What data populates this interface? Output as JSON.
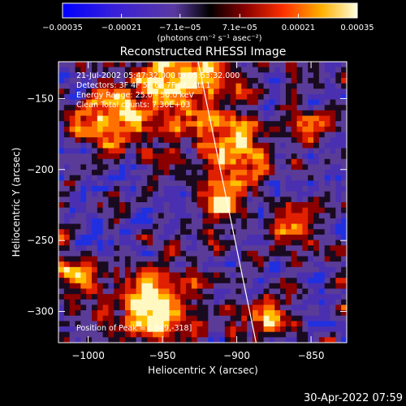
{
  "chart_data": {
    "type": "heatmap",
    "title": "Reconstructed RHESSI Image",
    "xlabel": "Heliocentric X (arcsec)",
    "ylabel": "Heliocentric Y (arcsec)",
    "xlim": [
      -1020,
      -826
    ],
    "ylim": [
      -322,
      -124
    ],
    "xticks": [
      -1000,
      -950,
      -900,
      -850
    ],
    "xtick_labels": [
      "−1000",
      "−950",
      "−900",
      "−850"
    ],
    "yticks": [
      -150,
      -200,
      -250,
      -300
    ],
    "ytick_labels": [
      "−150",
      "−200",
      "−250",
      "−300"
    ],
    "colorbar": {
      "range": [
        -0.00035,
        0.00035
      ],
      "ticks": [
        -0.00035,
        -0.00021,
        -7.1e-05,
        7.1e-05,
        0.00021,
        0.00035
      ],
      "tick_labels": [
        "−0.00035",
        "−0.00021",
        "−7.1e−05",
        "7.1e−05",
        "0.00021",
        "0.00035"
      ],
      "unit_label": "(photons cm⁻² s⁻¹ asec⁻²)"
    },
    "annotations": {
      "time_range": "21-Jul-2002 05:47:32.000 to 05:53:32.000",
      "detectors": "Detectors: 3F 4F 5F 6F 7F 8F, Att 1",
      "energy_range": "Energy Range: 25.0 - 50.0 keV",
      "method": "Clean     Total counts: 7.30E+03",
      "peak": "Position of Peak = [-949,-318]"
    },
    "limb": [
      [
        -926,
        -124
      ],
      [
        -887,
        -322
      ]
    ],
    "peak_position": [
      -949,
      -318
    ],
    "grid": false
  },
  "timestamp": "30-Apr-2022 07:59",
  "colors": {
    "background": "#000000",
    "text": "#ffffff",
    "limb": "#ffffff"
  }
}
